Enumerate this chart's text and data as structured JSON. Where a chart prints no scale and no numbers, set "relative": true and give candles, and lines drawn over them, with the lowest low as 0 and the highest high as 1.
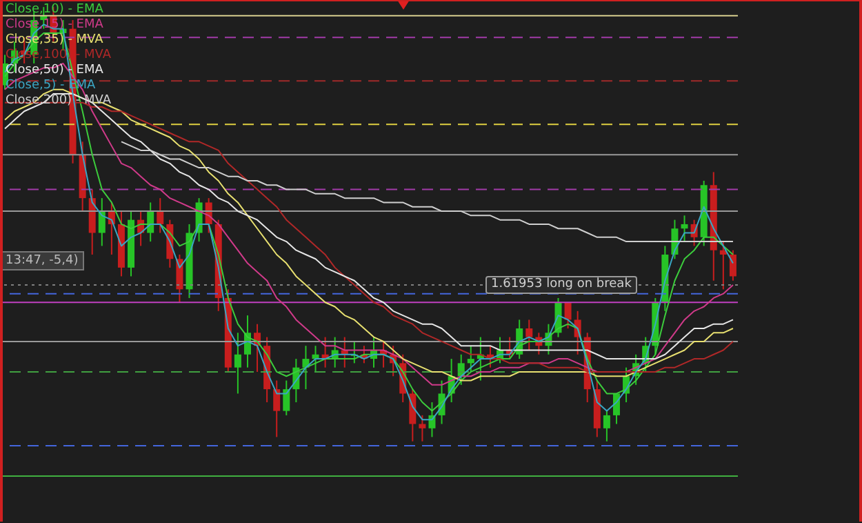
{
  "chart_data": {
    "type": "candlestick",
    "relative": true,
    "categories": [
      null,
      null,
      null,
      null,
      null,
      null,
      null,
      null,
      null,
      null,
      null,
      null,
      null,
      null,
      null,
      null,
      null,
      null,
      null,
      null,
      null,
      null,
      null,
      null,
      null,
      null,
      null,
      null,
      null,
      null,
      null,
      null,
      null,
      null,
      null,
      null,
      null,
      null,
      null,
      null,
      null,
      null,
      null,
      null,
      null,
      null,
      null,
      null,
      null,
      null,
      null,
      null,
      null,
      null,
      null,
      null,
      null,
      null,
      null,
      null,
      null,
      null,
      null,
      null,
      null,
      null,
      null,
      null,
      null,
      null,
      null,
      null,
      null,
      null,
      null,
      null
    ],
    "colors": [
      "#27c427",
      "#27c427",
      "#c81e1e",
      "#27c427",
      "#27c427",
      "#c81e1e",
      "#27c427",
      "#c81e1e",
      "#c81e1e",
      "#c81e1e",
      "#27c427",
      "#c81e1e",
      "#c81e1e",
      "#27c427",
      "#c81e1e",
      "#27c427",
      "#c81e1e",
      "#c81e1e",
      "#c81e1e",
      "#27c427",
      "#27c427",
      "#c81e1e",
      "#c81e1e",
      "#c81e1e",
      "#27c427",
      "#27c427",
      "#c81e1e",
      "#c81e1e",
      "#c81e1e",
      "#27c427",
      "#27c427",
      "#27c427",
      "#27c427",
      "#c81e1e",
      "#27c427",
      "#c81e1e",
      "#27c427",
      "#c81e1e",
      "#27c427",
      "#c81e1e",
      "#c81e1e",
      "#c81e1e",
      "#c81e1e",
      "#c81e1e",
      "#27c427",
      "#27c427",
      "#27c427",
      "#27c427",
      "#27c427",
      "#27c427",
      "#c81e1e",
      "#27c427",
      "#c81e1e",
      "#27c427",
      "#c81e1e",
      "#c81e1e",
      "#27c427",
      "#27c427",
      "#c81e1e",
      "#c81e1e",
      "#c81e1e",
      "#c81e1e",
      "#27c427",
      "#27c427",
      "#27c427",
      "#27c427",
      "#27c427",
      "#27c427",
      "#27c427",
      "#27c427",
      "#27c427",
      "#c81e1e",
      "#27c427",
      "#c81e1e",
      "#c81e1e",
      "#c81e1e"
    ],
    "ohlc": [
      [
        0.82,
        0.89,
        0.81,
        0.87
      ],
      [
        0.87,
        0.92,
        0.85,
        0.9
      ],
      [
        0.9,
        0.93,
        0.87,
        0.89
      ],
      [
        0.89,
        0.99,
        0.87,
        0.97
      ],
      [
        0.97,
        1,
        0.95,
        0.98
      ],
      [
        0.98,
        1,
        0.92,
        0.94
      ],
      [
        0.94,
        0.97,
        0.9,
        0.95
      ],
      [
        0.95,
        0.97,
        0.64,
        0.66
      ],
      [
        0.66,
        0.69,
        0.53,
        0.56
      ],
      [
        0.56,
        0.58,
        0.43,
        0.48
      ],
      [
        0.48,
        0.56,
        0.45,
        0.53
      ],
      [
        0.53,
        0.55,
        0.43,
        0.5
      ],
      [
        0.5,
        0.53,
        0.38,
        0.4
      ],
      [
        0.4,
        0.53,
        0.38,
        0.51
      ],
      [
        0.51,
        0.53,
        0.45,
        0.48
      ],
      [
        0.48,
        0.55,
        0.46,
        0.53
      ],
      [
        0.53,
        0.56,
        0.48,
        0.5
      ],
      [
        0.5,
        0.51,
        0.4,
        0.42
      ],
      [
        0.42,
        0.43,
        0.32,
        0.35
      ],
      [
        0.35,
        0.5,
        0.33,
        0.48
      ],
      [
        0.48,
        0.56,
        0.46,
        0.55
      ],
      [
        0.55,
        0.56,
        0.48,
        0.5
      ],
      [
        0.5,
        0.51,
        0.3,
        0.33
      ],
      [
        0.33,
        0.35,
        0.16,
        0.17
      ],
      [
        0.17,
        0.25,
        0.11,
        0.2
      ],
      [
        0.2,
        0.29,
        0.17,
        0.25
      ],
      [
        0.25,
        0.27,
        0.16,
        0.22
      ],
      [
        0.22,
        0.24,
        0.09,
        0.12
      ],
      [
        0.12,
        0.14,
        0.01,
        0.07
      ],
      [
        0.07,
        0.14,
        0.06,
        0.12
      ],
      [
        0.12,
        0.19,
        0.09,
        0.17
      ],
      [
        0.17,
        0.22,
        0.12,
        0.19
      ],
      [
        0.19,
        0.22,
        0.16,
        0.2
      ],
      [
        0.2,
        0.24,
        0.17,
        0.19
      ],
      [
        0.19,
        0.24,
        0.17,
        0.21
      ],
      [
        0.21,
        0.24,
        0.17,
        0.2
      ],
      [
        0.2,
        0.23,
        0.18,
        0.2
      ],
      [
        0.2,
        0.22,
        0.18,
        0.19
      ],
      [
        0.19,
        0.24,
        0.17,
        0.21
      ],
      [
        0.21,
        0.23,
        0.17,
        0.2
      ],
      [
        0.2,
        0.22,
        0.15,
        0.18
      ],
      [
        0.18,
        0.2,
        0.09,
        0.11
      ],
      [
        0.11,
        0.12,
        0,
        0.04
      ],
      [
        0.04,
        0.06,
        0,
        0.03
      ],
      [
        0.03,
        0.09,
        0.01,
        0.06
      ],
      [
        0.06,
        0.14,
        0.04,
        0.11
      ],
      [
        0.11,
        0.19,
        0.09,
        0.15
      ],
      [
        0.15,
        0.2,
        0.13,
        0.18
      ],
      [
        0.18,
        0.22,
        0.16,
        0.19
      ],
      [
        0.19,
        0.24,
        0.14,
        0.2
      ],
      [
        0.2,
        0.22,
        0.17,
        0.19
      ],
      [
        0.19,
        0.24,
        0.18,
        0.21
      ],
      [
        0.21,
        0.24,
        0.19,
        0.2
      ],
      [
        0.2,
        0.28,
        0.19,
        0.26
      ],
      [
        0.26,
        0.28,
        0.21,
        0.24
      ],
      [
        0.24,
        0.25,
        0.2,
        0.22
      ],
      [
        0.22,
        0.27,
        0.2,
        0.25
      ],
      [
        0.25,
        0.33,
        0.24,
        0.32
      ],
      [
        0.32,
        0.32,
        0.26,
        0.28
      ],
      [
        0.28,
        0.3,
        0.2,
        0.24
      ],
      [
        0.24,
        0.25,
        0.09,
        0.12
      ],
      [
        0.12,
        0.14,
        0.01,
        0.03
      ],
      [
        0.03,
        0.07,
        0,
        0.06
      ],
      [
        0.06,
        0.11,
        0.04,
        0.11
      ],
      [
        0.11,
        0.17,
        0.09,
        0.15
      ],
      [
        0.15,
        0.2,
        0.13,
        0.18
      ],
      [
        0.18,
        0.24,
        0.16,
        0.22
      ],
      [
        0.22,
        0.33,
        0.2,
        0.32
      ],
      [
        0.32,
        0.45,
        0.3,
        0.43
      ],
      [
        0.43,
        0.51,
        0.42,
        0.49
      ],
      [
        0.49,
        0.52,
        0.46,
        0.5
      ],
      [
        0.5,
        0.51,
        0.45,
        0.47
      ],
      [
        0.47,
        0.6,
        0.45,
        0.59
      ],
      [
        0.59,
        0.62,
        0.37,
        0.44
      ],
      [
        0.44,
        0.46,
        0.35,
        0.43
      ],
      [
        0.43,
        0.44,
        0.37,
        0.38
      ]
    ],
    "series": [
      {
        "type": "line",
        "name": "Close,10) - EMA",
        "color": "#3ccc3c",
        "values": [
          0.84,
          0.87,
          0.89,
          0.92,
          0.94,
          0.94,
          0.94,
          0.85,
          0.76,
          0.66,
          0.58,
          0.55,
          0.5,
          0.49,
          0.5,
          0.5,
          0.5,
          0.48,
          0.45,
          0.46,
          0.5,
          0.5,
          0.43,
          0.33,
          0.27,
          0.24,
          0.23,
          0.2,
          0.16,
          0.15,
          0.16,
          0.17,
          0.18,
          0.19,
          0.19,
          0.19,
          0.19,
          0.2,
          0.2,
          0.2,
          0.19,
          0.16,
          0.12,
          0.09,
          0.07,
          0.09,
          0.11,
          0.14,
          0.16,
          0.17,
          0.18,
          0.19,
          0.19,
          0.22,
          0.23,
          0.23,
          0.24,
          0.26,
          0.27,
          0.26,
          0.19,
          0.14,
          0.11,
          0.11,
          0.12,
          0.14,
          0.17,
          0.2,
          0.29,
          0.37,
          0.42,
          0.44,
          0.47,
          0.47,
          0.45,
          0.43
        ]
      },
      {
        "type": "line",
        "name": "Close,15) - EMA",
        "color": "#d03a8a",
        "values": [
          0.81,
          0.83,
          0.84,
          0.85,
          0.86,
          0.86,
          0.87,
          0.84,
          0.81,
          0.76,
          0.72,
          0.68,
          0.64,
          0.63,
          0.61,
          0.59,
          0.58,
          0.56,
          0.55,
          0.54,
          0.53,
          0.52,
          0.5,
          0.47,
          0.44,
          0.41,
          0.39,
          0.37,
          0.33,
          0.31,
          0.28,
          0.26,
          0.24,
          0.22,
          0.22,
          0.21,
          0.21,
          0.21,
          0.21,
          0.21,
          0.2,
          0.19,
          0.17,
          0.15,
          0.13,
          0.13,
          0.14,
          0.15,
          0.15,
          0.16,
          0.16,
          0.17,
          0.17,
          0.17,
          0.18,
          0.18,
          0.18,
          0.19,
          0.19,
          0.18,
          0.17,
          0.16,
          0.16,
          0.16,
          0.16,
          0.17,
          0.18,
          0.19,
          0.22,
          0.25,
          0.28,
          0.3,
          0.31,
          0.33,
          0.34,
          0.36
        ]
      },
      {
        "type": "line",
        "name": "Close,35) - MVA",
        "color": "#e8e070",
        "values": [
          0.74,
          0.76,
          0.77,
          0.78,
          0.8,
          0.81,
          0.81,
          0.8,
          0.79,
          0.78,
          0.78,
          0.77,
          0.76,
          0.74,
          0.73,
          0.72,
          0.71,
          0.7,
          0.68,
          0.67,
          0.65,
          0.62,
          0.6,
          0.57,
          0.55,
          0.52,
          0.49,
          0.46,
          0.43,
          0.41,
          0.38,
          0.36,
          0.34,
          0.32,
          0.31,
          0.29,
          0.28,
          0.26,
          0.24,
          0.23,
          0.21,
          0.19,
          0.18,
          0.17,
          0.16,
          0.16,
          0.15,
          0.14,
          0.14,
          0.15,
          0.15,
          0.15,
          0.15,
          0.16,
          0.16,
          0.16,
          0.16,
          0.16,
          0.16,
          0.16,
          0.16,
          0.15,
          0.15,
          0.15,
          0.15,
          0.16,
          0.17,
          0.18,
          0.19,
          0.2,
          0.21,
          0.23,
          0.23,
          0.25,
          0.25,
          0.26
        ]
      },
      {
        "type": "line",
        "name": "Close,100) - MVA",
        "color": "#b02828",
        "values": [
          0.78,
          0.78,
          0.78,
          0.78,
          0.78,
          0.78,
          0.78,
          0.78,
          0.78,
          0.77,
          0.77,
          0.76,
          0.76,
          0.75,
          0.74,
          0.73,
          0.72,
          0.71,
          0.7,
          0.69,
          0.69,
          0.68,
          0.67,
          0.64,
          0.62,
          0.6,
          0.58,
          0.56,
          0.54,
          0.51,
          0.49,
          0.47,
          0.45,
          0.43,
          0.4,
          0.38,
          0.36,
          0.34,
          0.32,
          0.31,
          0.29,
          0.28,
          0.27,
          0.25,
          0.24,
          0.23,
          0.22,
          0.21,
          0.2,
          0.2,
          0.19,
          0.19,
          0.18,
          0.18,
          0.18,
          0.18,
          0.17,
          0.17,
          0.17,
          0.17,
          0.16,
          0.16,
          0.16,
          0.16,
          0.16,
          0.16,
          0.16,
          0.16,
          0.17,
          0.17,
          0.18,
          0.19,
          0.19,
          0.2,
          0.21,
          0.23
        ]
      },
      {
        "type": "line",
        "name": "Close,50) - EMA",
        "color": "#e6e6e6",
        "values": [
          0.72,
          0.74,
          0.76,
          0.77,
          0.78,
          0.8,
          0.8,
          0.8,
          0.79,
          0.78,
          0.76,
          0.74,
          0.72,
          0.7,
          0.69,
          0.67,
          0.65,
          0.64,
          0.62,
          0.61,
          0.59,
          0.58,
          0.56,
          0.55,
          0.53,
          0.52,
          0.51,
          0.49,
          0.47,
          0.46,
          0.44,
          0.43,
          0.42,
          0.4,
          0.39,
          0.38,
          0.37,
          0.35,
          0.33,
          0.32,
          0.3,
          0.29,
          0.28,
          0.27,
          0.27,
          0.26,
          0.24,
          0.22,
          0.22,
          0.22,
          0.22,
          0.21,
          0.21,
          0.21,
          0.21,
          0.21,
          0.21,
          0.21,
          0.21,
          0.21,
          0.21,
          0.2,
          0.19,
          0.19,
          0.19,
          0.19,
          0.19,
          0.19,
          0.2,
          0.22,
          0.24,
          0.26,
          0.26,
          0.27,
          0.27,
          0.28
        ]
      },
      {
        "type": "line",
        "name": "Close,5) - EMA",
        "color": "#3aa6c4",
        "values": [
          0.85,
          0.88,
          0.89,
          0.94,
          0.96,
          0.95,
          0.95,
          0.8,
          0.66,
          0.55,
          0.52,
          0.51,
          0.45,
          0.47,
          0.48,
          0.5,
          0.5,
          0.46,
          0.4,
          0.43,
          0.5,
          0.5,
          0.4,
          0.26,
          0.22,
          0.23,
          0.22,
          0.16,
          0.11,
          0.11,
          0.14,
          0.17,
          0.19,
          0.19,
          0.2,
          0.2,
          0.2,
          0.19,
          0.2,
          0.2,
          0.19,
          0.14,
          0.08,
          0.05,
          0.05,
          0.08,
          0.12,
          0.15,
          0.17,
          0.19,
          0.19,
          0.2,
          0.2,
          0.23,
          0.24,
          0.23,
          0.24,
          0.29,
          0.28,
          0.26,
          0.18,
          0.09,
          0.07,
          0.09,
          0.12,
          0.16,
          0.19,
          0.27,
          0.37,
          0.44,
          0.48,
          0.48,
          0.54,
          0.49,
          0.45,
          0.41
        ]
      },
      {
        "type": "line",
        "name": "Close,200) - MVA",
        "color": "#cfcfcf",
        "values": [
          null,
          null,
          null,
          null,
          null,
          null,
          null,
          null,
          null,
          null,
          null,
          null,
          0.69,
          0.68,
          0.67,
          0.67,
          0.66,
          0.65,
          0.65,
          0.64,
          0.63,
          0.63,
          0.62,
          0.61,
          0.61,
          0.6,
          0.6,
          0.59,
          0.59,
          0.58,
          0.58,
          0.58,
          0.57,
          0.57,
          0.57,
          0.56,
          0.56,
          0.56,
          0.56,
          0.55,
          0.55,
          0.55,
          0.54,
          0.54,
          0.54,
          0.53,
          0.53,
          0.53,
          0.52,
          0.52,
          0.52,
          0.51,
          0.51,
          0.51,
          0.5,
          0.5,
          0.5,
          0.49,
          0.49,
          0.49,
          0.48,
          0.47,
          0.47,
          0.47,
          0.46,
          0.46,
          0.46,
          0.46,
          0.46,
          0.46,
          0.46,
          0.46,
          0.46,
          0.46,
          0.46,
          0.46
        ]
      }
    ],
    "ref_lines": [
      {
        "axis": "y",
        "value": 0.98,
        "color": "#d8cf90",
        "line_style": "solid"
      },
      {
        "axis": "y",
        "value": 0.93,
        "color": "#a23aa8",
        "line_style": "dashed"
      },
      {
        "axis": "y",
        "value": 0.83,
        "color": "#a02a2a",
        "line_style": "dashed"
      },
      {
        "axis": "y",
        "value": 0.73,
        "color": "#e0d040",
        "line_style": "dashed"
      },
      {
        "axis": "y",
        "value": 0.66,
        "color": "#9a9a9a",
        "line_style": "solid"
      },
      {
        "axis": "y",
        "value": 0.58,
        "color": "#a23aa8",
        "line_style": "dashed"
      },
      {
        "axis": "y",
        "value": 0.53,
        "color": "#9a9a9a",
        "line_style": "solid"
      },
      {
        "axis": "y",
        "value": 0.36,
        "color": "#808080",
        "line_style": "dotted",
        "label": "1.61953 long on break"
      },
      {
        "axis": "y",
        "value": 0.34,
        "color": "#4466dd",
        "line_style": "dashed"
      },
      {
        "axis": "y",
        "value": 0.32,
        "color": "#c040c0",
        "line_style": "solid"
      },
      {
        "axis": "y",
        "value": 0.23,
        "color": "#9a9a9a",
        "line_style": "solid"
      },
      {
        "axis": "y",
        "value": 0.16,
        "color": "#40a040",
        "line_style": "dashed"
      },
      {
        "axis": "y",
        "value": -0.01,
        "color": "#4466dd",
        "line_style": "dashed"
      },
      {
        "axis": "y",
        "value": -0.08,
        "color": "#40b040",
        "line_style": "solid"
      }
    ],
    "annotations": [
      "13:47, -5,4)"
    ],
    "legend": "top left"
  }
}
